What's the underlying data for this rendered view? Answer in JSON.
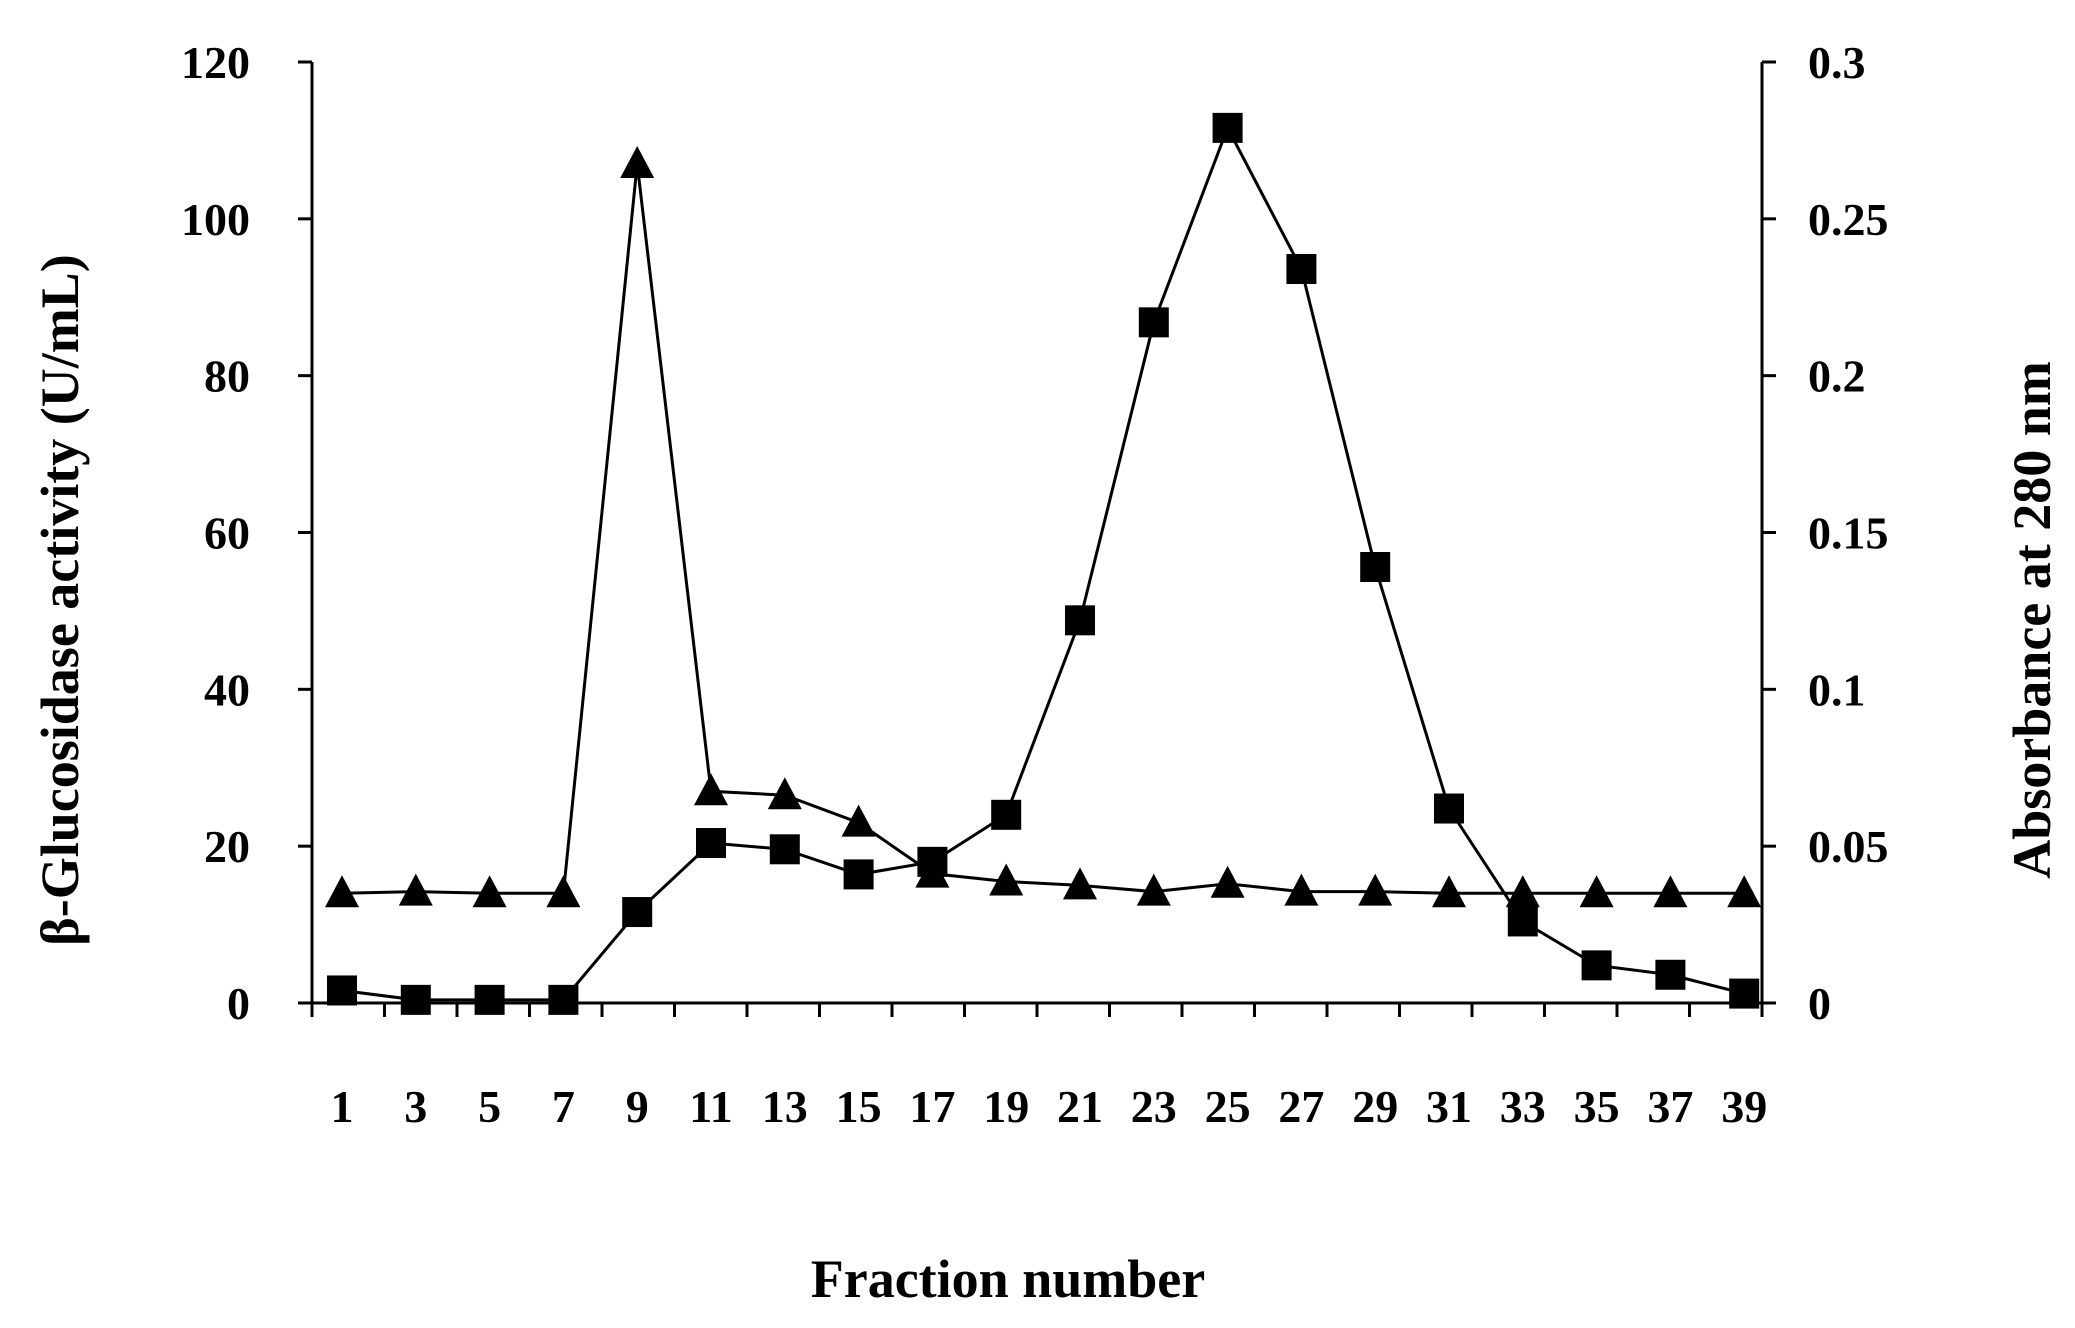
{
  "chart_data": {
    "type": "line",
    "xlabel": "Fraction number",
    "ylabel_left": "β-Glucosidase activity (U/mL)",
    "ylabel_right": "Absorbance at 280 nm",
    "x": [
      1,
      3,
      5,
      7,
      9,
      11,
      13,
      15,
      17,
      19,
      21,
      23,
      25,
      27,
      29,
      31,
      33,
      35,
      37,
      39
    ],
    "x_tick_labels": [
      "1",
      "3",
      "5",
      "7",
      "9",
      "11",
      "13",
      "15",
      "17",
      "19",
      "21",
      "23",
      "25",
      "27",
      "29",
      "31",
      "33",
      "35",
      "37",
      "39"
    ],
    "ylim_left": [
      0,
      120
    ],
    "ylim_right": [
      0,
      0.3
    ],
    "y_ticks_left": [
      "0",
      "20",
      "40",
      "60",
      "80",
      "100",
      "120"
    ],
    "y_ticks_right": [
      "0",
      "0.05",
      "0.1",
      "0.15",
      "0.2",
      "0.25",
      "0.3"
    ],
    "grid": false,
    "series": [
      {
        "marker": "triangle",
        "axis": "left",
        "values": [
          14,
          14.2,
          14,
          14,
          107,
          27,
          26.5,
          23,
          16.5,
          15.5,
          15,
          14.2,
          15.2,
          14.2,
          14.2,
          14,
          14,
          14,
          14,
          14
        ]
      },
      {
        "marker": "square",
        "axis": "right",
        "values": [
          0.004,
          0.001,
          0.001,
          0.001,
          0.029,
          0.051,
          0.049,
          0.041,
          0.045,
          0.06,
          0.122,
          0.217,
          0.279,
          0.234,
          0.139,
          0.062,
          0.026,
          0.012,
          0.009,
          0.003
        ]
      }
    ]
  }
}
